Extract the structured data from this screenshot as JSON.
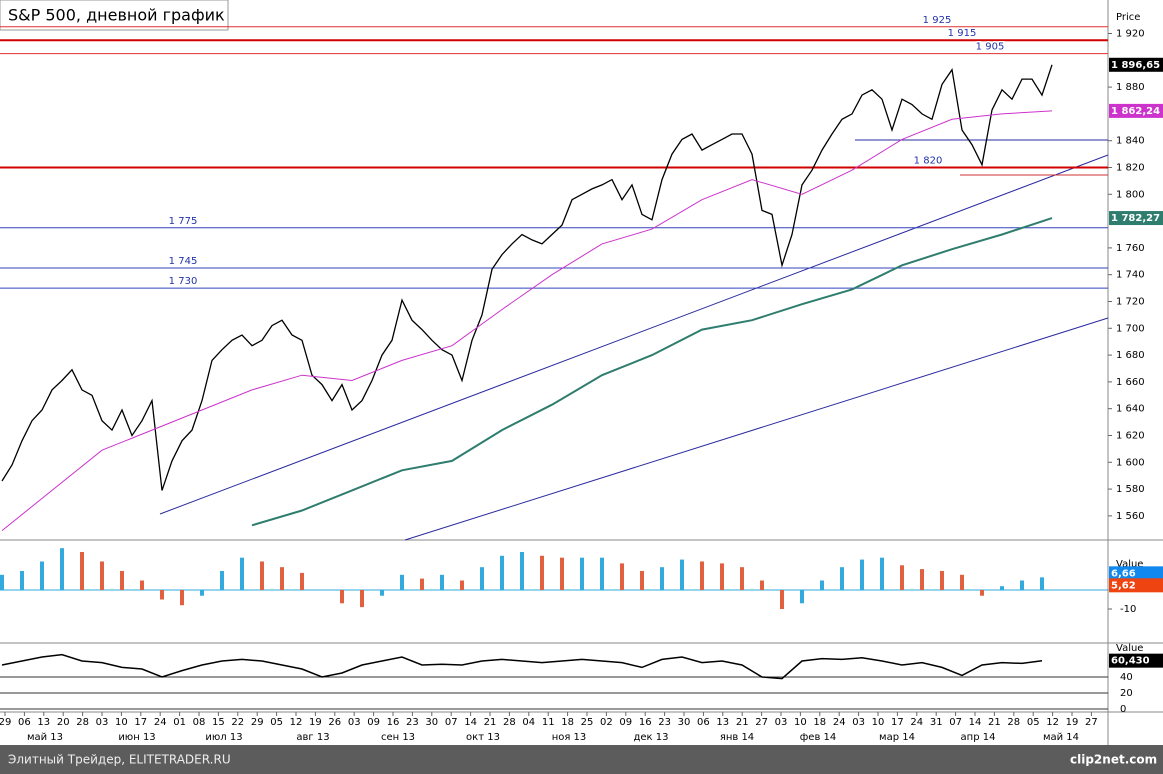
{
  "chart_data": [
    {
      "type": "line",
      "title": "S&P 500, дневной график",
      "axis_title": "Price",
      "ylim": [
        1542,
        1945
      ],
      "yticks": [
        {
          "value": 1920,
          "label": "1 920"
        },
        {
          "value": 1880,
          "label": "1 880"
        },
        {
          "value": 1840,
          "label": "1 840"
        },
        {
          "value": 1820,
          "label": "1 820"
        },
        {
          "value": 1800,
          "label": "1 800"
        },
        {
          "value": 1760,
          "label": "1 760"
        },
        {
          "value": 1740,
          "label": "1 740"
        },
        {
          "value": 1720,
          "label": "1 720"
        },
        {
          "value": 1700,
          "label": "1 700"
        },
        {
          "value": 1680,
          "label": "1 680"
        },
        {
          "value": 1660,
          "label": "1 660"
        },
        {
          "value": 1640,
          "label": "1 640"
        },
        {
          "value": 1620,
          "label": "1 620"
        },
        {
          "value": 1600,
          "label": "1 600"
        },
        {
          "value": 1580,
          "label": "1 580"
        },
        {
          "value": 1560,
          "label": "1 560"
        }
      ],
      "levels": [
        {
          "value": 1925,
          "label": "1 925",
          "color": "#e03030"
        },
        {
          "value": 1915,
          "label": "1 915",
          "color": "#d00000"
        },
        {
          "value": 1905,
          "label": "1 905",
          "color": "#e03030"
        },
        {
          "value": 1820,
          "label": "1 820",
          "color": "#d00000"
        },
        {
          "value": 1775,
          "label": "1 775",
          "color": "#3344bb"
        },
        {
          "value": 1745,
          "label": "1 745",
          "color": "#3344bb"
        },
        {
          "value": 1730,
          "label": "1 730",
          "color": "#3344bb"
        }
      ],
      "series": [
        {
          "color": "#000000",
          "last_label": "1 896,65",
          "values": [
            1586,
            1598,
            1616,
            1631,
            1639,
            1654,
            1661,
            1669,
            1654,
            1650,
            1631,
            1624,
            1639,
            1620,
            1631,
            1646,
            1579,
            1601,
            1616,
            1624,
            1646,
            1676,
            1684,
            1691,
            1695,
            1687,
            1691,
            1702,
            1706,
            1695,
            1691,
            1665,
            1658,
            1646,
            1658,
            1639,
            1646,
            1661,
            1680,
            1691,
            1721,
            1706,
            1699,
            1691,
            1684,
            1680,
            1661,
            1691,
            1710,
            1744,
            1755,
            1763,
            1770,
            1766,
            1763,
            1770,
            1777,
            1796,
            1800,
            1804,
            1807,
            1811,
            1796,
            1807,
            1785,
            1781,
            1811,
            1830,
            1841,
            1845,
            1833,
            1837,
            1841,
            1845,
            1845,
            1830,
            1788,
            1785,
            1747,
            1770,
            1807,
            1818,
            1833,
            1845,
            1856,
            1860,
            1874,
            1878,
            1871,
            1848,
            1871,
            1867,
            1860,
            1856,
            1882,
            1893,
            1848,
            1837,
            1822,
            1863,
            1878,
            1871,
            1886,
            1886,
            1874,
            1896.65
          ]
        },
        {
          "color": "#cc33cc",
          "last_label": "1 862,24",
          "values": [
            1549,
            1579,
            1609,
            1624,
            1639,
            1654,
            1665,
            1661,
            1676,
            1687,
            1714,
            1740,
            1763,
            1774,
            1796,
            1811,
            1800,
            1818,
            1841,
            1856,
            1860,
            1862.24
          ]
        },
        {
          "color": "#2e7d6e",
          "last_label": "1 782,27",
          "values": [
            null,
            null,
            null,
            null,
            null,
            1553,
            1564,
            1579,
            1594,
            1601,
            1624,
            1643,
            1665,
            1680,
            1699,
            1706,
            1718,
            1729,
            1747,
            1759,
            1770,
            1782.27
          ]
        }
      ],
      "xtick_labels": [
        "29",
        "06",
        "13",
        "20",
        "28",
        "03",
        "10",
        "17",
        "24",
        "01",
        "08",
        "15",
        "22",
        "29",
        "05",
        "12",
        "19",
        "26",
        "03",
        "09",
        "16",
        "23",
        "30",
        "07",
        "14",
        "21",
        "28",
        "04",
        "11",
        "18",
        "25",
        "02",
        "09",
        "16",
        "23",
        "30",
        "06",
        "13",
        "21",
        "27",
        "03",
        "10",
        "18",
        "24",
        "03",
        "10",
        "17",
        "24",
        "31",
        "07",
        "14",
        "21",
        "28",
        "05",
        "12",
        "19",
        "27"
      ],
      "month_labels": [
        "май 13",
        "июн 13",
        "июл 13",
        "авг 13",
        "сен 13",
        "окт 13",
        "ноя 13",
        "дек 13",
        "янв 14",
        "фев 14",
        "мар 14",
        "апр 14",
        "май 14"
      ],
      "footer": "Элитный Трейдер, ELITETRADER.RU",
      "watermark": "clip2net.com"
    },
    {
      "type": "bar",
      "axis_title": "Value",
      "ylim": [
        -26.3,
        26.3
      ],
      "yticks": [
        -10
      ],
      "rise_color": "#33aadd",
      "fall_color": "#e06040",
      "last_label": "6,66",
      "signal": {
        "value": 5.62,
        "label": "5,62"
      },
      "values": [
        8,
        10,
        15,
        22,
        20,
        15,
        10,
        5,
        -5,
        -8,
        -3,
        10,
        17,
        15,
        12,
        9,
        0,
        -7,
        -9,
        -3,
        8,
        6,
        8,
        5,
        12,
        18,
        20,
        18,
        17,
        17,
        17,
        14,
        10,
        12,
        16,
        15,
        14,
        12,
        5,
        -10,
        -7,
        5,
        12,
        16,
        17,
        13,
        11,
        10,
        8,
        -3,
        2,
        5,
        6.66
      ]
    },
    {
      "type": "line",
      "axis_title": "Value",
      "ylim": [
        0,
        80
      ],
      "yticks": [
        40,
        20,
        0
      ],
      "color": "#000000",
      "last_label": "60,430",
      "values": [
        55,
        60,
        65,
        68,
        60,
        58,
        52,
        50,
        40,
        48,
        55,
        60,
        62,
        60,
        55,
        50,
        40,
        45,
        55,
        60,
        65,
        55,
        56,
        55,
        60,
        62,
        60,
        58,
        60,
        62,
        60,
        58,
        52,
        62,
        65,
        58,
        60,
        55,
        40,
        38,
        60,
        63,
        62,
        64,
        60,
        55,
        58,
        52,
        42,
        55,
        58,
        57,
        60.43
      ]
    }
  ]
}
